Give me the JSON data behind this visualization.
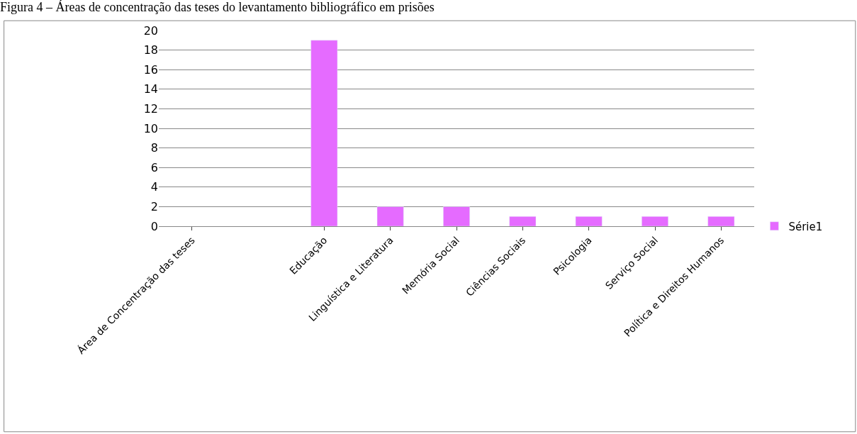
{
  "chart_data": {
    "type": "bar",
    "title": "Figura 4 – Áreas de concentração das teses do levantamento bibliográfico em prisões",
    "categories": [
      "Área de Concentração das teses",
      null,
      "Educação",
      "Linguística e Literatura",
      "Memória Social",
      "Ciências Sociais",
      "Psicologia",
      "Serviço Social",
      "Política e Direitos Humanos"
    ],
    "series": [
      {
        "name": "Série1",
        "color": "#e56bff",
        "values": [
          null,
          null,
          19,
          2,
          2,
          1,
          1,
          1,
          1
        ]
      }
    ],
    "ylim": [
      0,
      20
    ],
    "yticks": [
      0,
      2,
      4,
      6,
      8,
      10,
      12,
      14,
      16,
      18,
      20
    ],
    "grid": "y",
    "legend": "right"
  }
}
